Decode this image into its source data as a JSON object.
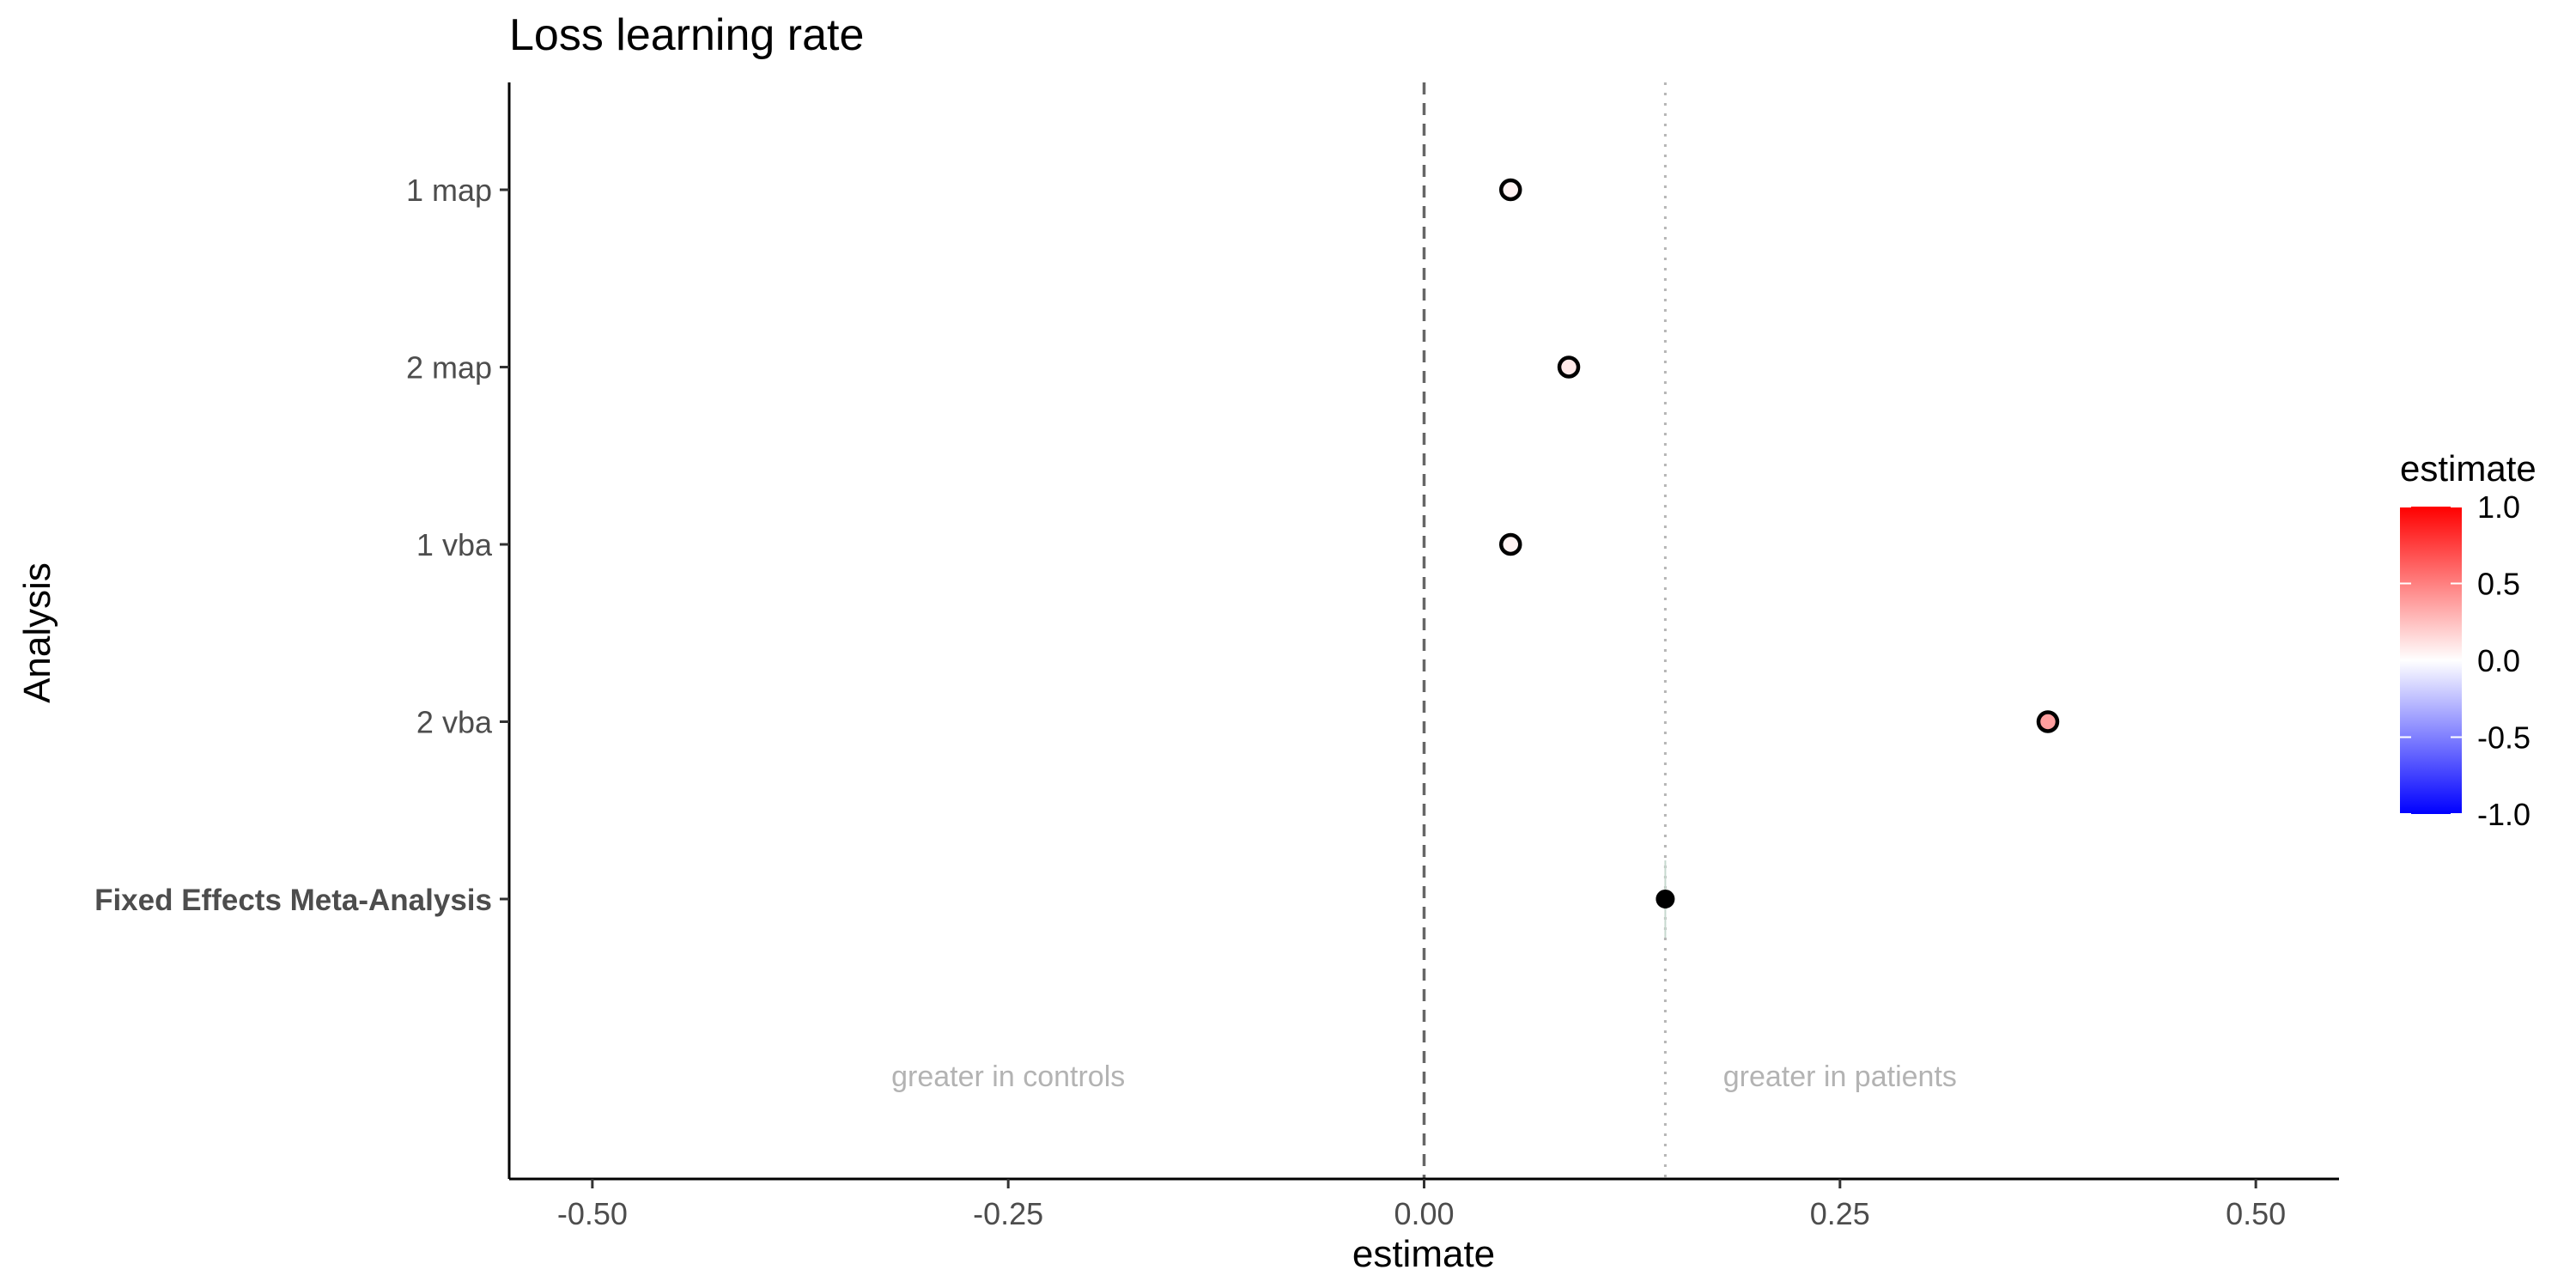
{
  "chart_data": {
    "type": "scatter",
    "title": "Loss learning rate",
    "xlabel": "estimate",
    "ylabel": "Analysis",
    "xlim": [
      -0.55,
      0.55
    ],
    "x_ticks": [
      -0.5,
      -0.25,
      0.0,
      0.25,
      0.5
    ],
    "x_tick_labels": [
      "-0.50",
      "-0.25",
      "0.00",
      "0.25",
      "0.50"
    ],
    "categories": [
      "1 map",
      "2 map",
      "1 vba",
      "2 vba",
      "Fixed Effects Meta-Analysis"
    ],
    "bold_categories": [
      "Fixed Effects Meta-Analysis"
    ],
    "points": [
      {
        "label": "1 map",
        "x": 0.052,
        "estimate": 0.052
      },
      {
        "label": "2 map",
        "x": 0.087,
        "estimate": 0.087
      },
      {
        "label": "1 vba",
        "x": 0.052,
        "estimate": 0.052
      },
      {
        "label": "2 vba",
        "x": 0.375,
        "estimate": 0.375
      },
      {
        "label": "Fixed Effects Meta-Analysis",
        "x": 0.145,
        "estimate": 0.145,
        "style": "filled-black"
      }
    ],
    "reference_lines": [
      {
        "x": 0.0,
        "style": "dashed",
        "color": "#666666"
      },
      {
        "x": 0.145,
        "style": "dotted",
        "color": "#b5b5b5"
      }
    ],
    "annotations": [
      {
        "text": "greater in controls",
        "x": -0.25
      },
      {
        "text": "greater in patients",
        "x": 0.25
      }
    ],
    "legend": {
      "title": "estimate",
      "position": "right",
      "type": "colorbar",
      "range": [
        -1.0,
        1.0
      ],
      "ticks": [
        1.0,
        0.5,
        0.0,
        -0.5,
        -1.0
      ],
      "tick_labels": [
        "1.0",
        "0.5",
        "0.0",
        "-0.5",
        "-1.0"
      ],
      "low_color": "#0000ff",
      "mid_color": "#ffffff",
      "high_color": "#ff0000"
    },
    "grid": false
  }
}
